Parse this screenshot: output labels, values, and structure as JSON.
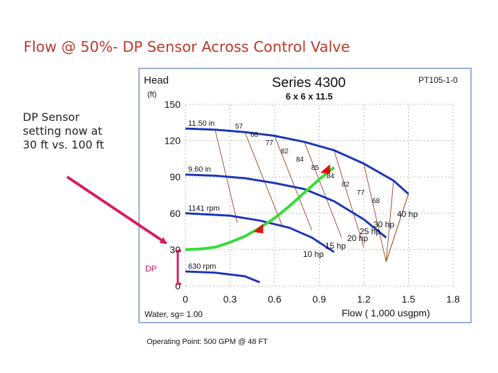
{
  "slide": {
    "title": "Flow @ 50%- DP Sensor Across Control Valve",
    "note": "DP Sensor setting now at 30 ft vs. 100 ft",
    "caption": "Operating Point:  500 GPM @ 48 FT"
  },
  "colors": {
    "title": "#c0392b",
    "pump_curve": "#1a35b8",
    "system_curve": "#33dd33",
    "arrow": "#d81b60",
    "efficiency": "#a0522d",
    "marker": "#e01010"
  },
  "chart_data": {
    "type": "line",
    "title": "Series  4300",
    "subtitle": "6 x 6 x 11.5",
    "code": "PT105-1-0",
    "ylabel": "Head",
    "yunit": "(ft)",
    "xlabel": "Flow ( 1,000 usgpm)",
    "fluid": "Water, sg= 1.00",
    "xlim": [
      0,
      1.8
    ],
    "ylim": [
      0,
      150
    ],
    "x_ticks": [
      "0",
      "0.3",
      "0.6",
      "0.9",
      "1.2",
      "1.5",
      "1.8"
    ],
    "y_ticks": [
      "0",
      "30",
      "60",
      "90",
      "120",
      "150"
    ],
    "speed_curves": [
      {
        "label": "11.50 in",
        "points": [
          [
            0,
            130
          ],
          [
            0.2,
            129
          ],
          [
            0.4,
            127
          ],
          [
            0.6,
            124
          ],
          [
            0.8,
            119
          ],
          [
            1.0,
            112
          ],
          [
            1.2,
            101
          ],
          [
            1.4,
            87
          ],
          [
            1.5,
            76
          ]
        ]
      },
      {
        "label": "9.60 in",
        "points": [
          [
            0,
            92
          ],
          [
            0.2,
            91
          ],
          [
            0.4,
            89
          ],
          [
            0.6,
            85
          ],
          [
            0.8,
            80
          ],
          [
            1.0,
            70
          ],
          [
            1.2,
            55
          ],
          [
            1.35,
            40
          ]
        ]
      },
      {
        "label": "1141 rpm",
        "points": [
          [
            0,
            60
          ],
          [
            0.3,
            58
          ],
          [
            0.5,
            54
          ],
          [
            0.7,
            48
          ],
          [
            0.85,
            40
          ],
          [
            1.0,
            28
          ]
        ]
      },
      {
        "label": "630 rpm",
        "points": [
          [
            0,
            12
          ],
          [
            0.2,
            11
          ],
          [
            0.4,
            8
          ],
          [
            0.5,
            3
          ]
        ]
      }
    ],
    "system_curve": {
      "points": [
        [
          0,
          30
        ],
        [
          0.1,
          30.5
        ],
        [
          0.2,
          32
        ],
        [
          0.3,
          36
        ],
        [
          0.4,
          41
        ],
        [
          0.5,
          48
        ],
        [
          0.6,
          56
        ],
        [
          0.7,
          66
        ],
        [
          0.8,
          77
        ],
        [
          0.9,
          88
        ],
        [
          1.0,
          98
        ]
      ]
    },
    "operating_points": [
      {
        "x": 0.5,
        "y": 48
      },
      {
        "x": 0.95,
        "y": 97
      }
    ],
    "efficiency_labels": [
      "57",
      "68",
      "77",
      "82",
      "84",
      "85",
      "84",
      "82",
      "77",
      "68"
    ],
    "hp_labels": [
      "40 hp",
      "30 hp",
      "25 hp",
      "20 hp",
      "15 hp",
      "10 hp"
    ],
    "dp_label": "DP"
  }
}
